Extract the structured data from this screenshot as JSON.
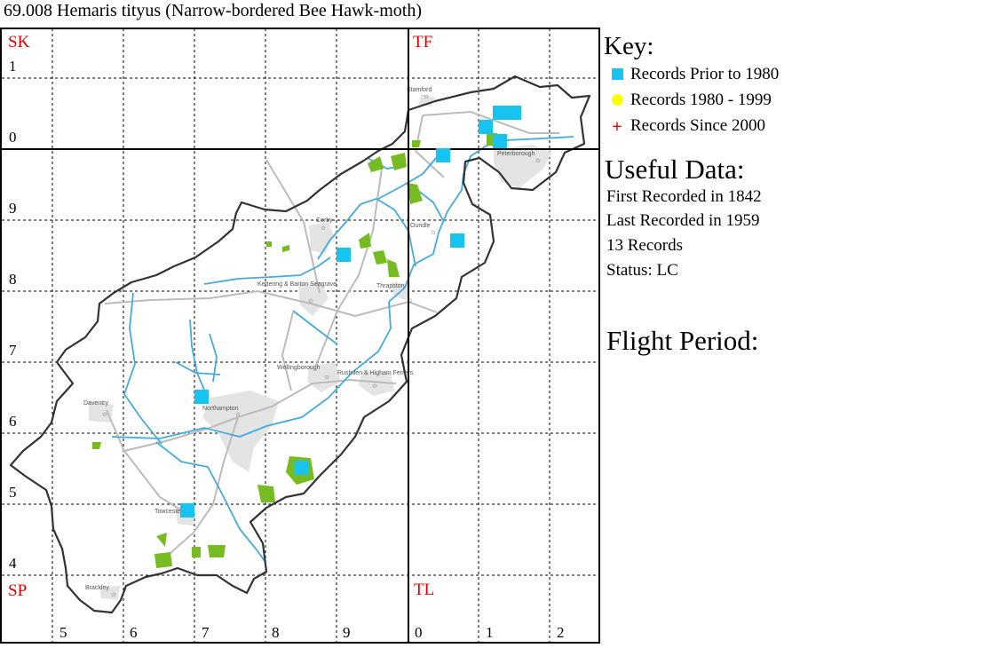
{
  "title": "69.008 Hemaris tityus (Narrow-bordered Bee Hawk-moth)",
  "map": {
    "square_labels": {
      "sk": "SK",
      "tf": "TF",
      "sp": "SP",
      "tl": "TL"
    },
    "colors": {
      "grid_square_label": "#e00000",
      "record_pre_1980": "#19c3ef",
      "record_1980_1999": "#ffff00",
      "record_since_2000": "#e00000",
      "county_boundary": "#333333",
      "rivers": "#44aadd",
      "roads": "#bbbbbb",
      "towns": "#e4e4e4",
      "woodland": "#77bb22"
    },
    "towns": [
      {
        "name": "Stamford"
      },
      {
        "name": "Peterborough"
      },
      {
        "name": "Corby"
      },
      {
        "name": "Oundle"
      },
      {
        "name": "Kettering & Barton Seagrave"
      },
      {
        "name": "Thrapston"
      },
      {
        "name": "Wellingborough"
      },
      {
        "name": "Rushden & Higham Ferrers"
      },
      {
        "name": "Daventry"
      },
      {
        "name": "Northampton"
      },
      {
        "name": "Towcester"
      },
      {
        "name": "Brackley"
      }
    ],
    "northing_labels": [
      "1",
      "0",
      "9",
      "8",
      "7",
      "6",
      "5",
      "4"
    ],
    "easting_labels": [
      "5",
      "6",
      "7",
      "8",
      "9",
      "0",
      "1",
      "2"
    ]
  },
  "legend": {
    "key_title": "Key:",
    "items": [
      {
        "label": "Records Prior to 1980",
        "symbol": "blue-square"
      },
      {
        "label": "Records 1980 - 1999",
        "symbol": "yellow-circle"
      },
      {
        "label": "Records Since 2000",
        "symbol": "red-cross"
      }
    ]
  },
  "useful_data": {
    "title": "Useful Data:",
    "first_recorded": "First Recorded in 1842",
    "last_recorded": "Last Recorded in 1959",
    "records": "13 Records",
    "status": "Status: LC"
  },
  "flight_period": {
    "title": "Flight Period:"
  }
}
